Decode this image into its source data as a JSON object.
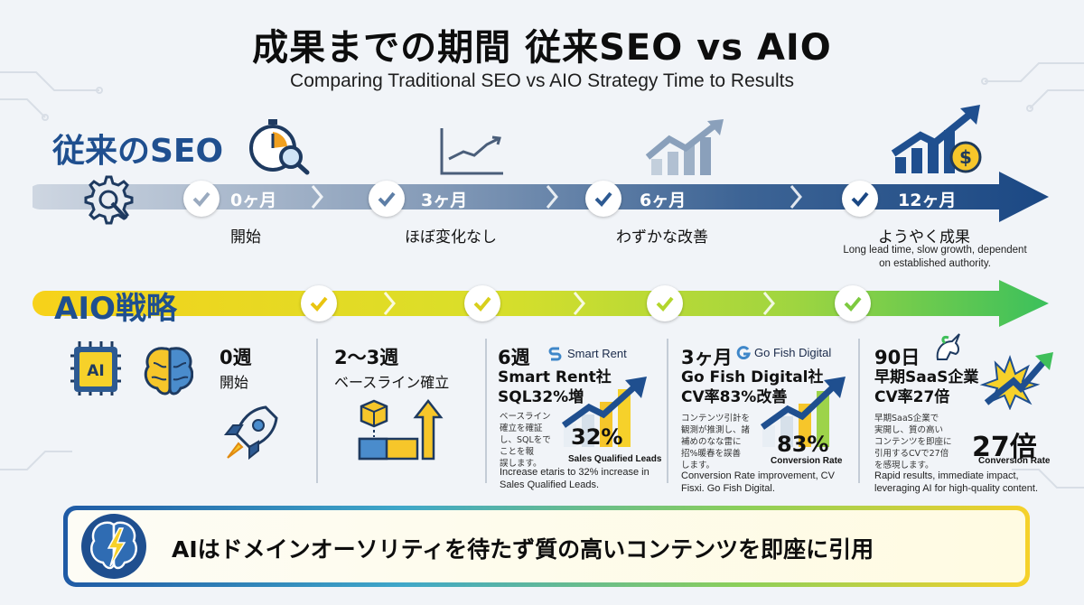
{
  "title": "成果までの期間 従来SEO vs AIO",
  "subtitle": "Comparing Traditional SEO vs AIO Strategy Time to Results",
  "seo": {
    "label": "従来のSEO",
    "milestones": [
      {
        "time": "0ヶ月",
        "desc": "開始"
      },
      {
        "time": "3ヶ月",
        "desc": "ほぼ変化なし"
      },
      {
        "time": "6ヶ月",
        "desc": "わずかな改善"
      },
      {
        "time": "12ヶ月",
        "desc": "ようやく成果"
      }
    ],
    "note": "Long lead time, slow growth, dependent on established authority."
  },
  "aio": {
    "label": "AIO戦略",
    "columns": [
      {
        "time": "0週",
        "sub": "開始"
      },
      {
        "time": "2〜3週",
        "sub": "ベースライン確立"
      },
      {
        "time": "6週",
        "brand": "Smart Rent",
        "head1": "Smart Rent社",
        "head2": "SQL32%増",
        "tiny": "ベースライン\n確立を確証\nし、SQLをで\nことを報\n誤します。",
        "value": "32%",
        "caption": "Sales Qualified Leads",
        "note": "Increase etaris to 32% increase in Sales Qualified Leads."
      },
      {
        "time": "3ヶ月",
        "brand": "Go Fish Digital",
        "head1": "Go Fish Digital社",
        "head2": "CV率83%改善",
        "tiny": "コンテンツ引計を\n観測が推測し、諸\n補めのなな雷に\n招%暖春を誤善\nします。",
        "value": "83%",
        "caption": "Conversion Rate",
        "note": "Conversion Rate improvement, CV Fisxi. Go Fish Digital."
      },
      {
        "time": "90日",
        "head1": "早期SaaS企業",
        "head2": "CV率27倍",
        "tiny": "早期SaaS企業で\n実開し、質の高い\nコンテンツを即座に\n引用するCVで27倍\nを感現します。",
        "value": "27倍",
        "caption": "Conversion Rate",
        "note": "Rapid results, immediate impact, leveraging AI for high-quality content."
      }
    ]
  },
  "banner": {
    "text": "AIはドメインオーソリティを待たず質の高いコンテンツを即座に引用"
  },
  "colors": {
    "seo_start": "#c8d1dc",
    "seo_end": "#1f4f8f",
    "aio_start": "#f6cf1a",
    "aio_end": "#3fbf5a",
    "check": "#3f87c9"
  }
}
